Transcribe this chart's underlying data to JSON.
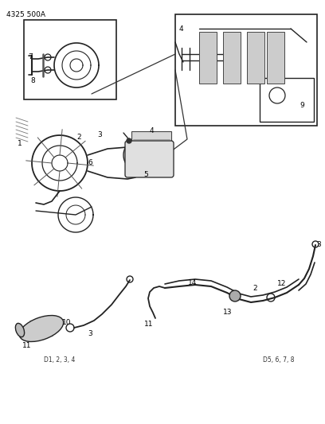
{
  "title_code": "4325 500A",
  "bg_color": "#ffffff",
  "line_color": "#222222",
  "fig_width": 4.08,
  "fig_height": 5.33,
  "dpi": 100
}
